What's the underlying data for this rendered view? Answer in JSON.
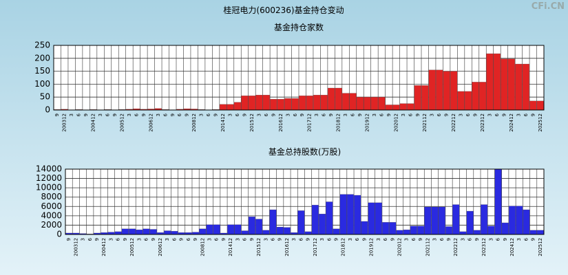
{
  "title": "桂冠电力(600236)基金持仓变动",
  "watermark": "CFi.CN",
  "chart_data": [
    {
      "type": "bar",
      "title": "基金持仓家数",
      "color": "#e02424",
      "grid": true,
      "categories": [
        "9",
        "200312",
        "3",
        "6",
        "9",
        "200412",
        "3",
        "6",
        "9",
        "200512",
        "3",
        "6",
        "9",
        "200612",
        "3",
        "6",
        "9",
        "6",
        "9",
        "200812",
        "3",
        "6",
        "9",
        "201412",
        "3",
        "6",
        "9",
        "201512",
        "3",
        "6",
        "9",
        "201612",
        "3",
        "6",
        "9",
        "201712",
        "3",
        "6",
        "9",
        "201812",
        "3",
        "6",
        "9",
        "201912",
        "3",
        "6",
        "9",
        "202012",
        "3",
        "6",
        "9",
        "202112",
        "3",
        "6",
        "9",
        "202212",
        "3",
        "6",
        "9",
        "202312",
        "3",
        "6",
        "9",
        "202412",
        "3",
        "6",
        "9",
        "202512"
      ],
      "values": [
        2,
        3,
        1,
        2,
        1,
        2,
        1,
        2,
        1,
        2,
        3,
        5,
        3,
        4,
        6,
        2,
        1,
        3,
        5,
        4,
        2,
        1,
        2,
        22,
        22,
        30,
        55,
        55,
        58,
        58,
        42,
        42,
        45,
        45,
        55,
        55,
        58,
        58,
        85,
        85,
        65,
        65,
        50,
        50,
        50,
        50,
        20,
        20,
        25,
        25,
        95,
        95,
        155,
        155,
        150,
        150,
        72,
        72,
        108,
        108,
        218,
        218,
        198,
        198,
        178,
        178,
        35,
        35
      ],
      "ylim": [
        0,
        250
      ],
      "yticks": [
        0,
        50,
        100,
        150,
        200,
        250
      ]
    },
    {
      "type": "bar",
      "title": "基金总持股数(万股)",
      "color": "#2a2ae0",
      "grid": true,
      "categories": [
        "9",
        "200312",
        "3",
        "6",
        "9",
        "200412",
        "3",
        "6",
        "9",
        "200512",
        "3",
        "6",
        "9",
        "200612",
        "3",
        "6",
        "9",
        "6",
        "9",
        "200812",
        "3",
        "6",
        "9",
        "201412",
        "3",
        "6",
        "9",
        "201512",
        "3",
        "6",
        "9",
        "201612",
        "3",
        "6",
        "9",
        "201712",
        "3",
        "6",
        "9",
        "201812",
        "3",
        "6",
        "9",
        "201912",
        "3",
        "6",
        "9",
        "202012",
        "3",
        "6",
        "9",
        "202112",
        "3",
        "6",
        "9",
        "202212",
        "3",
        "6",
        "9",
        "202312",
        "3",
        "6",
        "9",
        "202412",
        "3",
        "6",
        "9",
        "202512"
      ],
      "values": [
        300,
        300,
        200,
        100,
        300,
        400,
        500,
        600,
        1200,
        1200,
        1000,
        1200,
        1100,
        400,
        800,
        700,
        400,
        400,
        500,
        1200,
        2100,
        2100,
        300,
        2100,
        2100,
        800,
        3800,
        3300,
        900,
        5300,
        1600,
        1500,
        400,
        5100,
        600,
        6300,
        4400,
        7000,
        1200,
        8600,
        8600,
        8400,
        2800,
        6800,
        6800,
        2600,
        2600,
        900,
        1000,
        1800,
        1800,
        5900,
        5900,
        5900,
        1700,
        6400,
        600,
        5000,
        900,
        6400,
        1800,
        14000,
        2500,
        6100,
        6100,
        5300,
        900,
        900
      ],
      "ylim": [
        0,
        14000
      ],
      "yticks": [
        0,
        2000,
        4000,
        6000,
        8000,
        10000,
        12000,
        14000
      ]
    }
  ]
}
